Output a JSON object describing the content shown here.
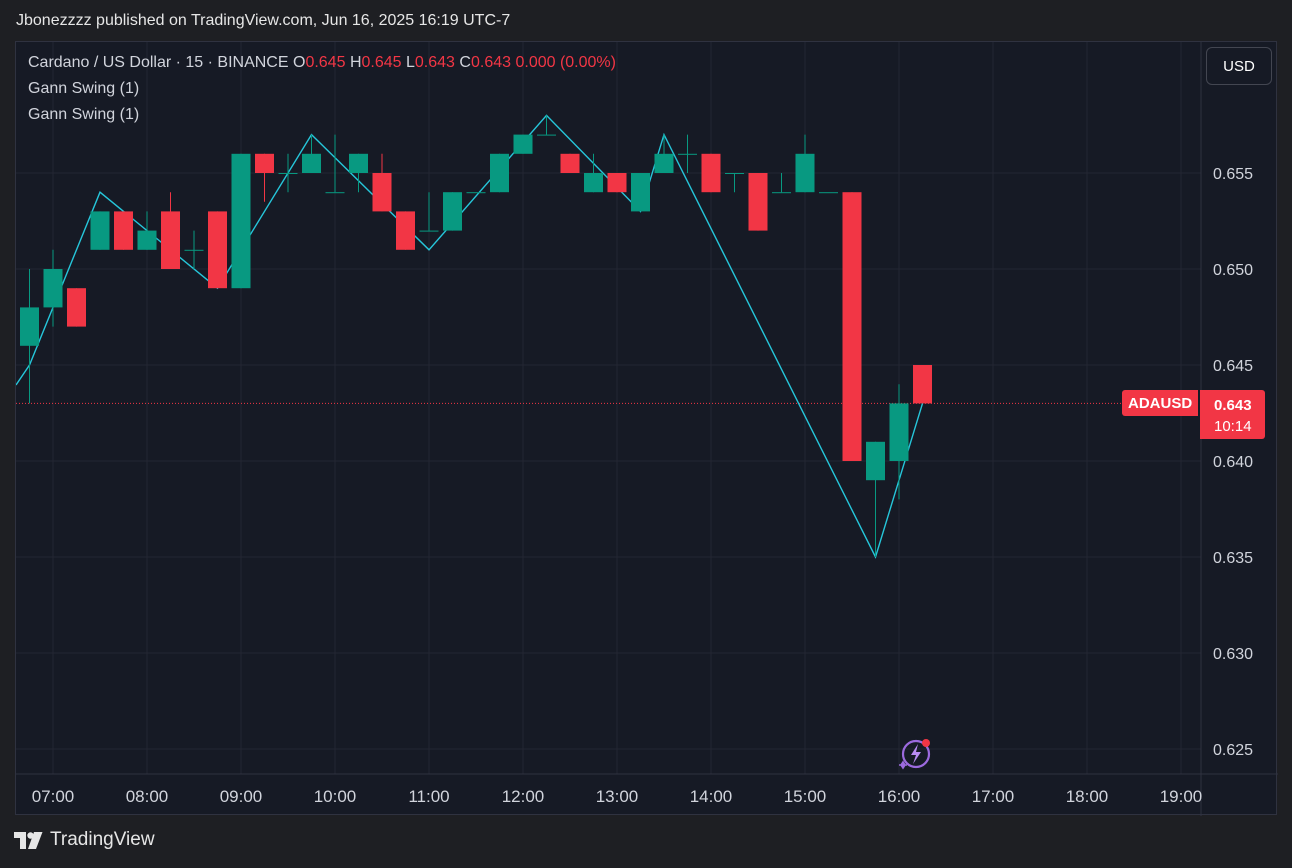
{
  "header": {
    "published_text": "Jbonezzzz published on TradingView.com, Jun 16, 2025 16:19 UTC-7"
  },
  "legend": {
    "symbol": "Cardano / US Dollar · 15 · BINANCE",
    "o_label": "O",
    "o_value": "0.645",
    "h_label": "H",
    "h_value": "0.645",
    "l_label": "L",
    "l_value": "0.643",
    "c_label": "C",
    "c_value": "0.643",
    "change": "0.000 (0.00%)",
    "indicators": [
      "Gann Swing (1)",
      "Gann Swing (1)"
    ]
  },
  "toolbar": {
    "currency_label": "USD"
  },
  "price_marker": {
    "symbol": "ADAUSD",
    "price": "0.643",
    "countdown": "10:14"
  },
  "footer": {
    "brand": "TradingView"
  },
  "icons": {
    "spark": "lightning-spark-icon",
    "logo": "tradingview-logo-icon"
  },
  "colors": {
    "up": "#089981",
    "down": "#f23645",
    "swing_line": "#26c6da",
    "background": "#161a25",
    "grid": "#232632"
  },
  "chart_data": {
    "type": "candlestick",
    "timeframe": "15",
    "x_tick_labels": [
      "07:00",
      "08:00",
      "09:00",
      "10:00",
      "11:00",
      "12:00",
      "13:00",
      "14:00",
      "15:00",
      "16:00",
      "17:00",
      "18:00",
      "19:00"
    ],
    "y_tick_labels": [
      "0.655",
      "0.650",
      "0.645",
      "0.640",
      "0.635",
      "0.630",
      "0.625"
    ],
    "y_ticks": [
      0.655,
      0.65,
      0.645,
      0.64,
      0.635,
      0.63,
      0.625
    ],
    "ylim": [
      0.6245,
      0.6585
    ],
    "grid": true,
    "last_price": 0.643,
    "candles": [
      {
        "t": "06:45",
        "o": 0.646,
        "h": 0.65,
        "l": 0.643,
        "c": 0.648
      },
      {
        "t": "07:00",
        "o": 0.648,
        "h": 0.651,
        "l": 0.647,
        "c": 0.65
      },
      {
        "t": "07:15",
        "o": 0.649,
        "h": 0.649,
        "l": 0.647,
        "c": 0.647
      },
      {
        "t": "07:30",
        "o": 0.651,
        "h": 0.653,
        "l": 0.651,
        "c": 0.653
      },
      {
        "t": "07:45",
        "o": 0.653,
        "h": 0.653,
        "l": 0.651,
        "c": 0.651
      },
      {
        "t": "08:00",
        "o": 0.651,
        "h": 0.653,
        "l": 0.651,
        "c": 0.652
      },
      {
        "t": "08:15",
        "o": 0.653,
        "h": 0.654,
        "l": 0.65,
        "c": 0.65
      },
      {
        "t": "08:30",
        "o": 0.651,
        "h": 0.652,
        "l": 0.65,
        "c": 0.651
      },
      {
        "t": "08:45",
        "o": 0.653,
        "h": 0.653,
        "l": 0.649,
        "c": 0.649
      },
      {
        "t": "09:00",
        "o": 0.649,
        "h": 0.656,
        "l": 0.649,
        "c": 0.656
      },
      {
        "t": "09:15",
        "o": 0.656,
        "h": 0.656,
        "l": 0.6535,
        "c": 0.655
      },
      {
        "t": "09:30",
        "o": 0.655,
        "h": 0.656,
        "l": 0.654,
        "c": 0.655
      },
      {
        "t": "09:45",
        "o": 0.655,
        "h": 0.657,
        "l": 0.655,
        "c": 0.656
      },
      {
        "t": "10:00",
        "o": 0.654,
        "h": 0.657,
        "l": 0.654,
        "c": 0.654
      },
      {
        "t": "10:15",
        "o": 0.655,
        "h": 0.656,
        "l": 0.654,
        "c": 0.656
      },
      {
        "t": "10:30",
        "o": 0.655,
        "h": 0.656,
        "l": 0.653,
        "c": 0.653
      },
      {
        "t": "10:45",
        "o": 0.653,
        "h": 0.653,
        "l": 0.651,
        "c": 0.651
      },
      {
        "t": "11:00",
        "o": 0.652,
        "h": 0.654,
        "l": 0.652,
        "c": 0.652
      },
      {
        "t": "11:15",
        "o": 0.652,
        "h": 0.654,
        "l": 0.652,
        "c": 0.654
      },
      {
        "t": "11:30",
        "o": 0.654,
        "h": 0.654,
        "l": 0.654,
        "c": 0.654
      },
      {
        "t": "11:45",
        "o": 0.654,
        "h": 0.656,
        "l": 0.654,
        "c": 0.656
      },
      {
        "t": "12:00",
        "o": 0.656,
        "h": 0.657,
        "l": 0.656,
        "c": 0.657
      },
      {
        "t": "12:15",
        "o": 0.657,
        "h": 0.658,
        "l": 0.657,
        "c": 0.657
      },
      {
        "t": "12:30",
        "o": 0.656,
        "h": 0.656,
        "l": 0.655,
        "c": 0.655
      },
      {
        "t": "12:45",
        "o": 0.654,
        "h": 0.656,
        "l": 0.654,
        "c": 0.655
      },
      {
        "t": "13:00",
        "o": 0.655,
        "h": 0.655,
        "l": 0.654,
        "c": 0.654
      },
      {
        "t": "13:15",
        "o": 0.653,
        "h": 0.655,
        "l": 0.653,
        "c": 0.655
      },
      {
        "t": "13:30",
        "o": 0.655,
        "h": 0.657,
        "l": 0.655,
        "c": 0.656
      },
      {
        "t": "13:45",
        "o": 0.656,
        "h": 0.657,
        "l": 0.655,
        "c": 0.656
      },
      {
        "t": "14:00",
        "o": 0.656,
        "h": 0.656,
        "l": 0.654,
        "c": 0.654
      },
      {
        "t": "14:15",
        "o": 0.655,
        "h": 0.655,
        "l": 0.654,
        "c": 0.655
      },
      {
        "t": "14:30",
        "o": 0.655,
        "h": 0.655,
        "l": 0.652,
        "c": 0.652
      },
      {
        "t": "14:45",
        "o": 0.654,
        "h": 0.655,
        "l": 0.654,
        "c": 0.654
      },
      {
        "t": "15:00",
        "o": 0.654,
        "h": 0.657,
        "l": 0.654,
        "c": 0.656
      },
      {
        "t": "15:15",
        "o": 0.654,
        "h": 0.654,
        "l": 0.654,
        "c": 0.654
      },
      {
        "t": "15:30",
        "o": 0.654,
        "h": 0.654,
        "l": 0.64,
        "c": 0.64
      },
      {
        "t": "15:45",
        "o": 0.639,
        "h": 0.641,
        "l": 0.635,
        "c": 0.641
      },
      {
        "t": "16:00",
        "o": 0.64,
        "h": 0.644,
        "l": 0.638,
        "c": 0.643
      },
      {
        "t": "16:15",
        "o": 0.645,
        "h": 0.645,
        "l": 0.643,
        "c": 0.643
      }
    ],
    "series": [
      {
        "type": "line",
        "points": [
          {
            "t": "06:45",
            "v": 0.645
          },
          {
            "t": "07:30",
            "v": 0.654
          },
          {
            "t": "08:45",
            "v": 0.649
          },
          {
            "t": "09:45",
            "v": 0.657
          },
          {
            "t": "11:00",
            "v": 0.651
          },
          {
            "t": "12:15",
            "v": 0.658
          },
          {
            "t": "13:15",
            "v": 0.653
          },
          {
            "t": "13:30",
            "v": 0.657
          },
          {
            "t": "15:45",
            "v": 0.635
          },
          {
            "t": "16:15",
            "v": 0.643
          }
        ]
      }
    ]
  }
}
